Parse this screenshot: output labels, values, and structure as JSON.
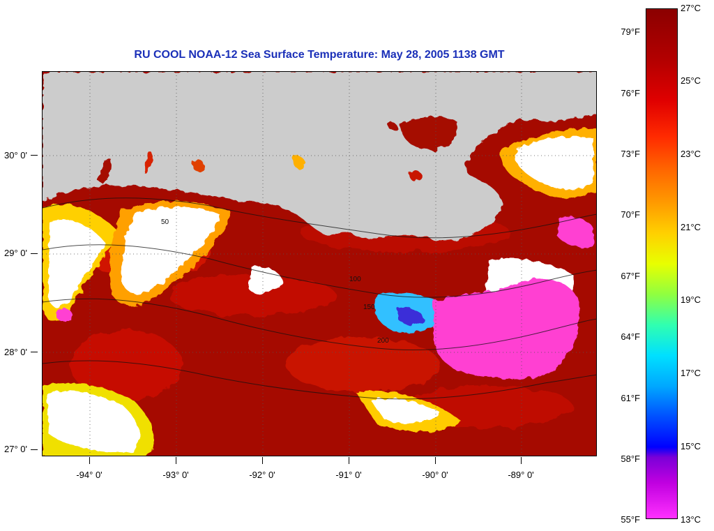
{
  "title": "RU COOL  NOAA-12  Sea Surface Temperature:  May 28, 2005 1138 GMT",
  "map": {
    "latitude_labels": [
      "30° 0'",
      "29° 0'",
      "28° 0'",
      "27° 0'"
    ],
    "longitude_labels": [
      "-94° 0'",
      "-93° 0'",
      "-92° 0'",
      "-91° 0'",
      "-90° 0'",
      "-89° 0'"
    ],
    "contour_labels": [
      "50",
      "100",
      "150",
      "200"
    ],
    "land_color": "#cccccc",
    "water_color": "#a80a00",
    "cloud_color": "#ffffff",
    "cold_color": "#ff3fd2"
  },
  "colorbar": {
    "celsius_labels": [
      "27°C",
      "25°C",
      "23°C",
      "21°C",
      "19°C",
      "17°C",
      "15°C",
      "13°C"
    ],
    "fahrenheit_labels": [
      "79°F",
      "76°F",
      "73°F",
      "70°F",
      "67°F",
      "64°F",
      "61°F",
      "58°F",
      "55°F"
    ]
  }
}
